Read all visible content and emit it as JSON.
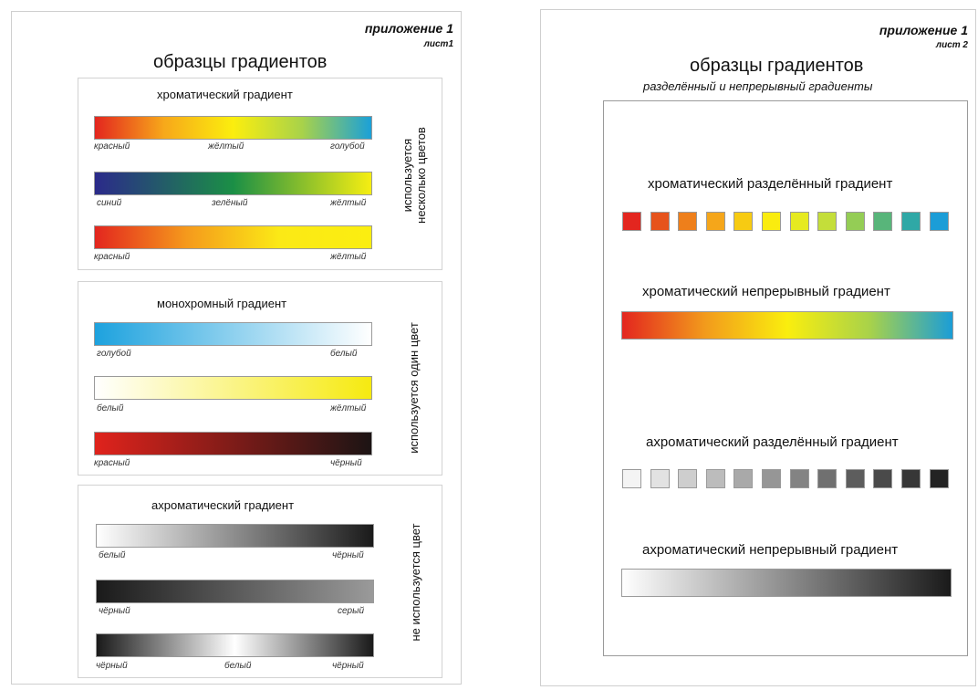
{
  "sheet1": {
    "appendix": "приложение 1",
    "sheet_label": "лист1",
    "title": "образцы градиентов",
    "chromatic": {
      "title": "хроматический  градиент",
      "side_label_line1": "используется",
      "side_label_line2": "несколько цветов",
      "bars": [
        {
          "labels": [
            "красный",
            "жёлтый",
            "голубой"
          ],
          "colors": [
            "#e3261f",
            "#f7a81a",
            "#fbee0e",
            "#a8d24a",
            "#1ba0d8"
          ]
        },
        {
          "labels": [
            "синий",
            "зелёный",
            "жёлтый"
          ],
          "colors": [
            "#2b2a8a",
            "#1b8f46",
            "#f6ee12"
          ]
        },
        {
          "labels": [
            "красный",
            "жёлтый"
          ],
          "colors": [
            "#e3261f",
            "#f59a1c",
            "#fbe916",
            "#fbee10"
          ]
        }
      ]
    },
    "monochrome": {
      "title": "монохромный  градиент",
      "side_label": "используется один цвет",
      "bars": [
        {
          "labels": [
            "голубой",
            "белый"
          ],
          "colors": [
            "#1da2de",
            "#ffffff"
          ]
        },
        {
          "labels": [
            "белый",
            "жёлтый"
          ],
          "colors": [
            "#ffffff",
            "#f6ea10"
          ]
        },
        {
          "labels": [
            "красный",
            "чёрный"
          ],
          "colors": [
            "#e0231c",
            "#1c1414"
          ]
        }
      ]
    },
    "achromatic": {
      "title": "ахроматический  градиент",
      "side_label": "не используется цвет",
      "bars": [
        {
          "labels": [
            "белый",
            "чёрный"
          ],
          "colors": [
            "#ffffff",
            "#1a1a1a"
          ]
        },
        {
          "labels": [
            "чёрный",
            "серый"
          ],
          "colors": [
            "#1a1a1a",
            "#9a9a9a"
          ]
        },
        {
          "labels": [
            "чёрный",
            "белый",
            "чёрный"
          ],
          "colors": [
            "#1a1a1a",
            "#ffffff",
            "#1a1a1a"
          ]
        }
      ]
    }
  },
  "sheet2": {
    "appendix": "приложение 1",
    "sheet_label": "лист 2",
    "title": "образцы градиентов",
    "subtitle": "разделённый и непрерывный градиенты",
    "chromatic_split": {
      "title": "хроматический разделённый градиент",
      "swatches": [
        "#e3261f",
        "#e6531c",
        "#ee7f1b",
        "#f5a61a",
        "#f7cb12",
        "#faec0f",
        "#e6ea20",
        "#c4de3a",
        "#94cd55",
        "#58b57a",
        "#2fa8a6",
        "#1b9dd7"
      ]
    },
    "chromatic_continuous": {
      "title": "хроматический непрерывный градиент",
      "colors": [
        "#e3261f",
        "#f29a1c",
        "#faee0e",
        "#a8d24a",
        "#1b9dd7"
      ]
    },
    "achromatic_split": {
      "title": "ахроматический разделённый градиент",
      "swatches": [
        "#f4f4f4",
        "#e2e2e2",
        "#cecece",
        "#bcbcbc",
        "#a9a9a9",
        "#969696",
        "#838383",
        "#707070",
        "#5d5d5d",
        "#4a4a4a",
        "#373737",
        "#232323"
      ]
    },
    "achromatic_continuous": {
      "title": "ахроматический непрерывный градиент",
      "colors": [
        "#ffffff",
        "#1a1a1a"
      ]
    }
  }
}
